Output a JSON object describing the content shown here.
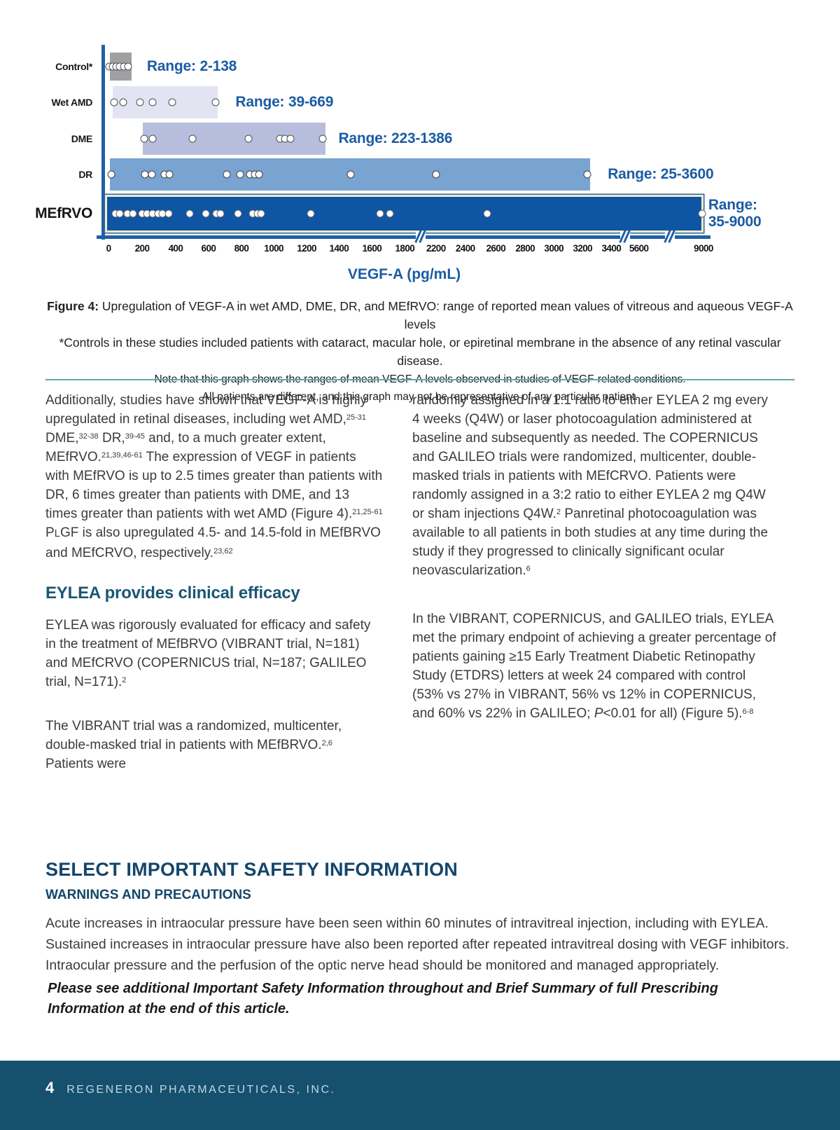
{
  "page": {
    "number": "4",
    "footer_org": "REGENERON PHARMACEUTICALS, INC."
  },
  "chart_data": {
    "type": "range_bar",
    "xlabel": "VEGF-A (pg/mL)",
    "axis_color": "#1f60a6",
    "label_color": "#1b5ca3",
    "x_ticks": [
      {
        "label": "0",
        "pos": 0.6
      },
      {
        "label": "200",
        "pos": 6.2
      },
      {
        "label": "400",
        "pos": 11.8
      },
      {
        "label": "600",
        "pos": 17.3
      },
      {
        "label": "800",
        "pos": 22.8
      },
      {
        "label": "1000",
        "pos": 28.2
      },
      {
        "label": "1200",
        "pos": 33.7
      },
      {
        "label": "1400",
        "pos": 39.1
      },
      {
        "label": "1600",
        "pos": 44.6
      },
      {
        "label": "1800",
        "pos": 50.1
      },
      {
        "label": "2200",
        "pos": 55.3
      },
      {
        "label": "2400",
        "pos": 60.2
      },
      {
        "label": "2600",
        "pos": 65.3
      },
      {
        "label": "2800",
        "pos": 70.2
      },
      {
        "label": "3000",
        "pos": 75.0
      },
      {
        "label": "3200",
        "pos": 79.8
      },
      {
        "label": "3400",
        "pos": 84.6
      },
      {
        "label": "5600",
        "pos": 89.2
      },
      {
        "label": "9000",
        "pos": 100
      }
    ],
    "axis_breaks": [
      52.7,
      86.9,
      94.4
    ],
    "rows": [
      {
        "name": "control",
        "label": "Control*",
        "range_label": "Range: 2-138",
        "range_min": 2,
        "range_max": 138,
        "bar_color": "#a0a0a3",
        "bar_start": 0.8,
        "bar_end": 4.5,
        "dots": [
          0.7,
          1.3,
          1.9,
          2.5,
          3.2,
          3.9
        ],
        "dot_ring": "#4e4f53",
        "range_label_pos": 7.0
      },
      {
        "name": "wet-amd",
        "label": "Wet AMD",
        "range_label": "Range: 39-669",
        "range_min": 39,
        "range_max": 669,
        "bar_color": "#e2e4f1",
        "bar_start": 1.3,
        "bar_end": 18.8,
        "dots": [
          1.5,
          3.0,
          5.9,
          7.9,
          11.2,
          18.5
        ],
        "dot_ring": "#4e4f53",
        "range_label_pos": 21.8
      },
      {
        "name": "dme",
        "label": "DME",
        "range_label": "Range: 223-1386",
        "range_min": 223,
        "range_max": 1386,
        "bar_color": "#b7bedd",
        "bar_start": 6.3,
        "bar_end": 36.8,
        "dots": [
          6.6,
          8.0,
          14.6,
          24.0,
          29.2,
          30.0,
          31.0,
          36.4
        ],
        "dot_ring": "#4e4f53",
        "range_label_pos": 39.0
      },
      {
        "name": "dr",
        "label": "DR",
        "range_label": "Range: 25-3600",
        "range_min": 25,
        "range_max": 3600,
        "bar_color": "#79a3d1",
        "bar_start": 0.8,
        "bar_end": 81.0,
        "dots": [
          1.0,
          6.7,
          7.8,
          9.9,
          10.8,
          20.4,
          22.6,
          24.2,
          25.0,
          25.7,
          41.0,
          55.3,
          80.6
        ],
        "dot_ring": "#3f4043",
        "range_label_pos": 84.0
      },
      {
        "name": "mefrvo",
        "label": "MEfRVO",
        "range_label": "Range: 35-9000",
        "range_label_lines": [
          "Range:",
          "35-9000"
        ],
        "range_min": 35,
        "range_max": 9000,
        "bar_color": "#0e55a4",
        "emphasized": true,
        "bar_start": 0,
        "bar_end": 100,
        "dots": [
          1.7,
          2.5,
          3.7,
          4.7,
          6.2,
          7.0,
          8.0,
          8.9,
          9.6,
          10.6,
          14.1,
          16.9,
          18.6,
          19.3,
          22.2,
          24.7,
          25.5,
          26.1,
          34.4,
          46.0,
          47.6,
          63.9,
          99.8
        ],
        "dot_ring": "#6a6a6c",
        "range_label_pos": 100.8
      }
    ]
  },
  "figure_caption": {
    "line1": [
      {
        "t": "Figure 4: ",
        "b": true
      },
      {
        "t": "Upregulation of VEGF-A in wet AMD, DME, DR, and MEfRVO: range of reported mean values of vitreous and aqueous VEGF-A levels"
      }
    ],
    "line2": "*Controls in these studies included patients with cataract, macular hole, or epiretinal membrane in the absence of any retinal vascular disease.",
    "note1": "Note that this graph shows the ranges of mean VEGF-A levels observed in studies of VEGF-related conditions.",
    "note2": "All patients are different, and this graph may not be representative of any particular patient."
  },
  "body": {
    "left": {
      "p1": [
        {
          "t": "Additionally, studies have shown that VEGF-A is highly upregulated in retinal diseases, including wet AMD,"
        },
        {
          "t": "25-31",
          "sup": true
        },
        {
          "t": " DME,"
        },
        {
          "t": "32-38",
          "sup": true
        },
        {
          "t": " DR,"
        },
        {
          "t": "39-45",
          "sup": true
        },
        {
          "t": " and, to a much greater extent, MEfRVO."
        },
        {
          "t": "21,39,46-61",
          "sup": true
        },
        {
          "t": " The expression of VEGF in patients with MEfRVO is up to 2.5 times greater than patients with DR, 6 times greater than patients with DME, and 13 times greater than patients with wet AMD (Figure 4)."
        },
        {
          "t": "21,25-61",
          "sup": true
        },
        {
          "t": " P"
        },
        {
          "t": "L",
          "sc": true
        },
        {
          "t": "GF is also upregulated 4.5- and 14.5-fold in MEfBRVO and MEfCRVO, respectively."
        },
        {
          "t": "23,62",
          "sup": true
        }
      ],
      "heading": "EYLEA provides clinical efficacy",
      "p2": [
        {
          "t": "EYLEA was rigorously evaluated for efficacy and safety in the treatment of MEfBRVO (VIBRANT trial, N=181) and MEfCRVO (COPERNICUS trial, N=187; GALILEO trial, N=171)."
        },
        {
          "t": "2",
          "sup": true
        }
      ],
      "p3": [
        {
          "t": "The VIBRANT trial was a randomized, multicenter, double-masked trial in patients with MEfBRVO."
        },
        {
          "t": "2,6",
          "sup": true
        },
        {
          "t": " Patients were"
        }
      ]
    },
    "right": {
      "p1": [
        {
          "t": "randomly assigned in a 1:1 ratio to either EYLEA 2 mg every 4 weeks (Q4W) or laser photocoagulation administered at baseline and subsequently as needed. The COPERNICUS and GALILEO trials were randomized, multicenter, double-masked trials in patients with MEfCRVO. Patients were randomly assigned in a 3:2 ratio to either EYLEA 2 mg Q4W or sham injections Q4W."
        },
        {
          "t": "2",
          "sup": true
        },
        {
          "t": " Panretinal photocoagulation was available to all patients in both studies at any time during the study if they progressed to clinically significant ocular neovascularization."
        },
        {
          "t": "6",
          "sup": true
        }
      ],
      "p2": [
        {
          "t": "In the VIBRANT, COPERNICUS, and GALILEO trials, EYLEA met the primary endpoint of achieving a greater percentage of patients gaining ≥15 Early Treatment Diabetic Retinopathy Study (ETDRS) letters at week 24 compared with control (53% vs 27% in VIBRANT, 56% vs 12% in COPERNICUS, and 60% vs 22% in GALILEO; "
        },
        {
          "t": "P",
          "i": true
        },
        {
          "t": "<0.01 for all) (Figure 5)."
        },
        {
          "t": "6-8",
          "sup": true
        }
      ]
    }
  },
  "safety": {
    "title": "SELECT IMPORTANT SAFETY INFORMATION",
    "subtitle": "WARNINGS AND PRECAUTIONS",
    "paragraph": "Acute increases in intraocular pressure have been seen within 60 minutes of intravitreal injection, including with EYLEA. Sustained increases in intraocular pressure have also been reported after repeated intravitreal dosing with VEGF inhibitors. Intraocular pressure and the perfusion of the optic nerve head should be monitored and managed appropriately.",
    "note": "Please see additional Important Safety Information throughout and Brief Summary of full Prescribing Information at the end of this article."
  }
}
